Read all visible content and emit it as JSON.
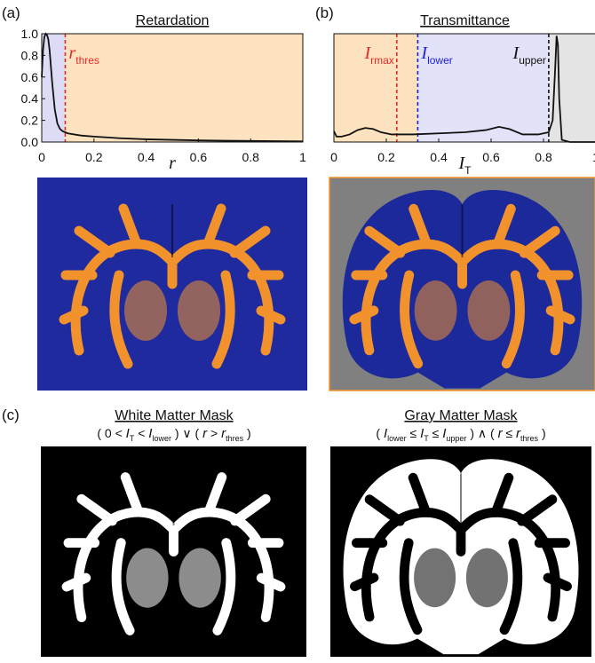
{
  "panel_labels": [
    "(a)",
    "(b)",
    "(c)"
  ],
  "chart_data": [
    {
      "type": "line",
      "title": "Retardation",
      "x_label": {
        "symbol": "r"
      },
      "xlim": [
        0,
        1
      ],
      "xticks": [
        0,
        0.2,
        0.4,
        0.6,
        0.8,
        1
      ],
      "ylim": [
        0,
        1
      ],
      "yticks": [
        {
          "value": 0,
          "label": "0.0"
        },
        0.2,
        0.4,
        0.6,
        0.8,
        {
          "value": 1,
          "label": "1.0"
        }
      ],
      "x": [
        0,
        0.005,
        0.01,
        0.015,
        0.02,
        0.025,
        0.03,
        0.04,
        0.05,
        0.06,
        0.07,
        0.08,
        0.1,
        0.15,
        0.2,
        0.3,
        0.4,
        0.5,
        0.6,
        0.7,
        0.8,
        0.9,
        1
      ],
      "values": [
        0.6,
        0.85,
        0.97,
        1.0,
        0.99,
        0.95,
        0.85,
        0.55,
        0.3,
        0.17,
        0.12,
        0.1,
        0.08,
        0.06,
        0.05,
        0.035,
        0.025,
        0.02,
        0.015,
        0.012,
        0.01,
        0.008,
        0.006
      ],
      "color": "#111111",
      "regions": [
        {
          "x": [
            0,
            0.09
          ],
          "color": "#dcdcf6"
        },
        {
          "x": [
            0.09,
            1
          ],
          "color": "#fde2bf"
        }
      ],
      "thresholds": [
        {
          "value": 0.09,
          "symbol": "r",
          "subscript": "thres",
          "color": "#e02a2a",
          "label_side": "right"
        }
      ]
    },
    {
      "type": "line",
      "title": "Transmittance",
      "x_label": {
        "symbol": "I",
        "subscript": "T"
      },
      "xlim": [
        0,
        1
      ],
      "xticks": [
        0,
        0.2,
        0.4,
        0.6,
        0.8,
        1
      ],
      "ylim": [
        0,
        1
      ],
      "x": [
        0,
        0.01,
        0.03,
        0.06,
        0.09,
        0.12,
        0.15,
        0.18,
        0.22,
        0.3,
        0.4,
        0.5,
        0.58,
        0.63,
        0.67,
        0.72,
        0.78,
        0.82,
        0.835,
        0.845,
        0.85,
        0.855,
        0.86,
        0.87,
        0.9,
        1
      ],
      "values": [
        0.1,
        0.05,
        0.05,
        0.07,
        0.11,
        0.13,
        0.12,
        0.09,
        0.07,
        0.07,
        0.08,
        0.09,
        0.11,
        0.14,
        0.12,
        0.07,
        0.07,
        0.09,
        0.2,
        0.7,
        0.98,
        0.9,
        0.4,
        0.02,
        0,
        0
      ],
      "color": "#111111",
      "regions": [
        {
          "x": [
            0,
            0.32
          ],
          "color": "#fde2bf"
        },
        {
          "x": [
            0.32,
            0.82
          ],
          "color": "#e2e2f8"
        },
        {
          "x": [
            0.82,
            1
          ],
          "color": "#e4e4e4"
        }
      ],
      "thresholds": [
        {
          "value": 0.24,
          "symbol": "I",
          "subscript": "rmax",
          "color": "#e02a2a",
          "label_side": "left"
        },
        {
          "value": 0.32,
          "symbol": "I",
          "subscript": "lower",
          "color": "#2020e0",
          "label_side": "right"
        },
        {
          "value": 0.82,
          "symbol": "I",
          "subscript": "upper",
          "color": "#111111",
          "label_side": "left"
        }
      ]
    }
  ],
  "masks": [
    {
      "title": "White Matter Mask",
      "formula": [
        {
          "text": "( 0 < "
        },
        {
          "text": "I",
          "italic": true
        },
        {
          "text": "T",
          "sub": true
        },
        {
          "text": " < "
        },
        {
          "text": "I",
          "italic": true
        },
        {
          "text": "lower",
          "sub": true
        },
        {
          "text": " ) ∨ ( "
        },
        {
          "text": "r",
          "italic": true
        },
        {
          "text": " > "
        },
        {
          "text": "r",
          "italic": true
        },
        {
          "text": "thres",
          "sub": true
        },
        {
          "text": " )"
        }
      ]
    },
    {
      "title": "Gray Matter Mask",
      "formula": [
        {
          "text": "( "
        },
        {
          "text": "I",
          "italic": true
        },
        {
          "text": "lower",
          "sub": true
        },
        {
          "text": " ≤ "
        },
        {
          "text": "I",
          "italic": true
        },
        {
          "text": "T",
          "sub": true
        },
        {
          "text": " ≤ "
        },
        {
          "text": "I",
          "italic": true
        },
        {
          "text": "upper",
          "sub": true
        },
        {
          "text": " ) ∧ ( "
        },
        {
          "text": "r",
          "italic": true
        },
        {
          "text": " ≤ "
        },
        {
          "text": "r",
          "italic": true
        },
        {
          "text": "thres",
          "sub": true
        },
        {
          "text": " )"
        }
      ]
    }
  ]
}
